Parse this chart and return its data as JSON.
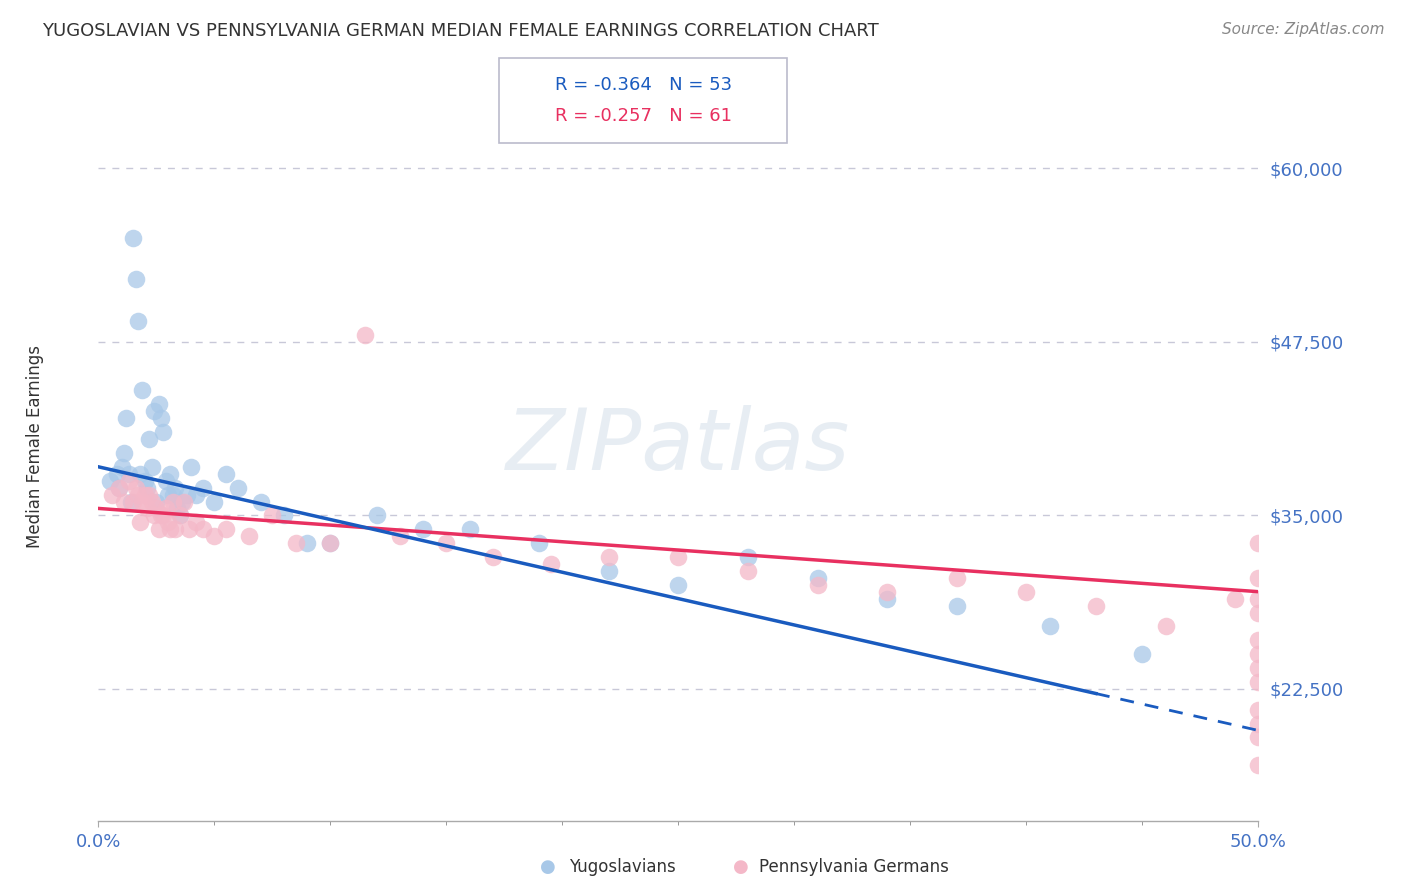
{
  "title": "YUGOSLAVIAN VS PENNSYLVANIA GERMAN MEDIAN FEMALE EARNINGS CORRELATION CHART",
  "source": "Source: ZipAtlas.com",
  "ylabel": "Median Female Earnings",
  "yticks": [
    22500,
    35000,
    47500,
    60000
  ],
  "ytick_labels": [
    "$22,500",
    "$35,000",
    "$47,500",
    "$60,000"
  ],
  "xlim": [
    0.0,
    0.5
  ],
  "ylim": [
    13000,
    67000
  ],
  "legend_r1": "R = -0.364",
  "legend_n1": "N = 53",
  "legend_r2": "R = -0.257",
  "legend_n2": "N = 61",
  "blue_color": "#a8c8e8",
  "pink_color": "#f4b8c8",
  "blue_line_color": "#1a5bbf",
  "pink_line_color": "#e83060",
  "background_color": "#ffffff",
  "grid_color": "#c8c8d8",
  "axis_label_color": "#4472c4",
  "title_color": "#333333",
  "yug_slope": -38000,
  "yug_intercept": 38500,
  "penn_slope": -12000,
  "penn_intercept": 35500,
  "yugoslavian_x": [
    0.005,
    0.008,
    0.009,
    0.01,
    0.011,
    0.012,
    0.013,
    0.014,
    0.015,
    0.016,
    0.017,
    0.018,
    0.019,
    0.02,
    0.021,
    0.022,
    0.023,
    0.024,
    0.025,
    0.026,
    0.027,
    0.028,
    0.029,
    0.03,
    0.031,
    0.032,
    0.033,
    0.034,
    0.035,
    0.036,
    0.038,
    0.04,
    0.042,
    0.045,
    0.05,
    0.055,
    0.06,
    0.07,
    0.08,
    0.09,
    0.1,
    0.12,
    0.14,
    0.16,
    0.19,
    0.22,
    0.25,
    0.28,
    0.31,
    0.34,
    0.37,
    0.41,
    0.45
  ],
  "yugoslavian_y": [
    37500,
    38000,
    37000,
    38500,
    39500,
    42000,
    38000,
    36000,
    55000,
    52000,
    49000,
    38000,
    44000,
    37500,
    37000,
    40500,
    38500,
    42500,
    36000,
    43000,
    42000,
    41000,
    37500,
    36500,
    38000,
    36500,
    37000,
    35500,
    35000,
    36000,
    36500,
    38500,
    36500,
    37000,
    36000,
    38000,
    37000,
    36000,
    35000,
    33000,
    33000,
    35000,
    34000,
    34000,
    33000,
    31000,
    30000,
    32000,
    30500,
    29000,
    28500,
    27000,
    25000
  ],
  "pennsylvania_x": [
    0.006,
    0.009,
    0.011,
    0.013,
    0.015,
    0.016,
    0.017,
    0.018,
    0.019,
    0.02,
    0.021,
    0.022,
    0.023,
    0.024,
    0.025,
    0.026,
    0.027,
    0.028,
    0.029,
    0.03,
    0.031,
    0.032,
    0.033,
    0.035,
    0.037,
    0.039,
    0.042,
    0.045,
    0.05,
    0.055,
    0.065,
    0.075,
    0.085,
    0.1,
    0.115,
    0.13,
    0.15,
    0.17,
    0.195,
    0.22,
    0.25,
    0.28,
    0.31,
    0.34,
    0.37,
    0.4,
    0.43,
    0.46,
    0.49,
    0.5,
    0.5,
    0.5,
    0.5,
    0.5,
    0.5,
    0.5,
    0.5,
    0.5,
    0.5,
    0.5,
    0.5
  ],
  "pennsylvania_y": [
    36500,
    37000,
    36000,
    37500,
    36000,
    37000,
    36500,
    34500,
    36000,
    36500,
    35500,
    36500,
    36000,
    35000,
    35500,
    34000,
    35000,
    35000,
    35500,
    34500,
    34000,
    36000,
    34000,
    35000,
    36000,
    34000,
    34500,
    34000,
    33500,
    34000,
    33500,
    35000,
    33000,
    33000,
    48000,
    33500,
    33000,
    32000,
    31500,
    32000,
    32000,
    31000,
    30000,
    29500,
    30500,
    29500,
    28500,
    27000,
    29000,
    33000,
    30500,
    29000,
    28000,
    26000,
    25000,
    24000,
    23000,
    21000,
    20000,
    19000,
    17000
  ]
}
